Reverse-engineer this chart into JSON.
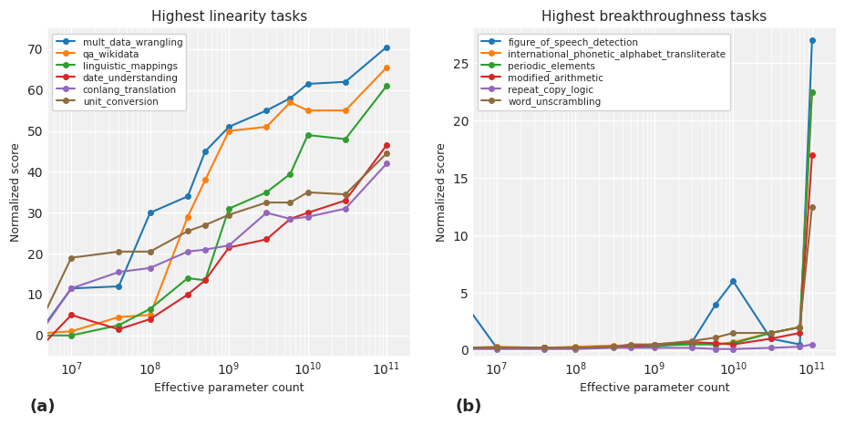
{
  "left_title": "Highest linearity tasks",
  "right_title": "Highest breakthroughness tasks",
  "xlabel": "Effective parameter count",
  "ylabel": "Normalized score",
  "panel_a_label": "(a)",
  "panel_b_label": "(b)",
  "left_x": [
    4000000.0,
    10000000.0,
    40000000.0,
    100000000.0,
    300000000.0,
    500000000.0,
    1000000000.0,
    3000000000.0,
    6000000000.0,
    10000000000.0,
    30000000000.0,
    100000000000.0
  ],
  "left_series": {
    "mult_data_wrangling": {
      "color": "#1f77b4",
      "marker": "o",
      "y": [
        1.0,
        11.5,
        12.0,
        30.0,
        34.0,
        45.0,
        51.0,
        55.0,
        58.0,
        61.5,
        62.0,
        70.5
      ]
    },
    "qa_wikidata": {
      "color": "#ff7f0e",
      "marker": "o",
      "y": [
        0.5,
        1.0,
        4.5,
        5.0,
        29.0,
        38.0,
        50.0,
        51.0,
        57.0,
        55.0,
        55.0,
        65.5
      ]
    },
    "linguistic_mappings": {
      "color": "#2ca02c",
      "marker": "o",
      "y": [
        0.0,
        0.0,
        2.5,
        6.5,
        14.0,
        13.5,
        31.0,
        35.0,
        39.5,
        49.0,
        48.0,
        61.0
      ]
    },
    "date_understanding": {
      "color": "#d62728",
      "marker": "o",
      "y": [
        -3.0,
        5.0,
        1.5,
        4.0,
        10.0,
        13.5,
        21.5,
        23.5,
        28.5,
        30.0,
        33.0,
        46.5
      ]
    },
    "conlang_translation": {
      "color": "#9467bd",
      "marker": "o",
      "y": [
        0.5,
        11.5,
        15.5,
        16.5,
        20.5,
        21.0,
        22.0,
        30.0,
        28.5,
        29.0,
        31.0,
        42.0
      ]
    },
    "unit_conversion": {
      "color": "#8c6d3f",
      "marker": "o",
      "y": [
        3.0,
        19.0,
        20.5,
        20.5,
        25.5,
        27.0,
        29.5,
        32.5,
        32.5,
        35.0,
        34.5,
        44.5
      ]
    }
  },
  "right_x": [
    4000000.0,
    10000000.0,
    40000000.0,
    100000000.0,
    300000000.0,
    500000000.0,
    1000000000.0,
    3000000000.0,
    6000000000.0,
    10000000000.0,
    30000000000.0,
    70000000000.0,
    100000000000.0
  ],
  "right_series": {
    "figure_of_speech_detection": {
      "color": "#1f77b4",
      "marker": "o",
      "y": [
        4.0,
        0.2,
        0.2,
        0.2,
        0.3,
        0.3,
        0.3,
        0.7,
        4.0,
        6.0,
        1.0,
        0.5,
        27.0
      ]
    },
    "international_phonetic_alphabet_transliterate": {
      "color": "#ff7f0e",
      "marker": "o",
      "y": [
        0.2,
        0.3,
        0.2,
        0.3,
        0.4,
        0.4,
        0.5,
        0.7,
        0.5,
        0.7,
        1.5,
        2.0,
        22.5
      ]
    },
    "periodic_elements": {
      "color": "#2ca02c",
      "marker": "o",
      "y": [
        0.2,
        0.2,
        0.2,
        0.2,
        0.3,
        0.3,
        0.4,
        0.5,
        0.5,
        0.6,
        1.5,
        2.0,
        22.5
      ]
    },
    "modified_arithmetic": {
      "color": "#d62728",
      "marker": "o",
      "y": [
        0.2,
        0.2,
        0.2,
        0.2,
        0.3,
        0.3,
        0.5,
        0.7,
        0.6,
        0.5,
        1.0,
        1.5,
        17.0
      ]
    },
    "repeat_copy_logic": {
      "color": "#9467bd",
      "marker": "o",
      "y": [
        0.1,
        0.1,
        0.1,
        0.1,
        0.2,
        0.2,
        0.2,
        0.2,
        0.1,
        0.1,
        0.2,
        0.3,
        0.5
      ]
    },
    "word_unscrambling": {
      "color": "#8c6d3f",
      "marker": "o",
      "y": [
        0.2,
        0.2,
        0.2,
        0.2,
        0.3,
        0.5,
        0.5,
        0.8,
        1.1,
        1.5,
        1.5,
        2.0,
        12.5
      ]
    }
  },
  "bg_color": "#f0f0f0",
  "grid_color": "white",
  "figsize": [
    9.28,
    4.66
  ],
  "dpi": 100
}
